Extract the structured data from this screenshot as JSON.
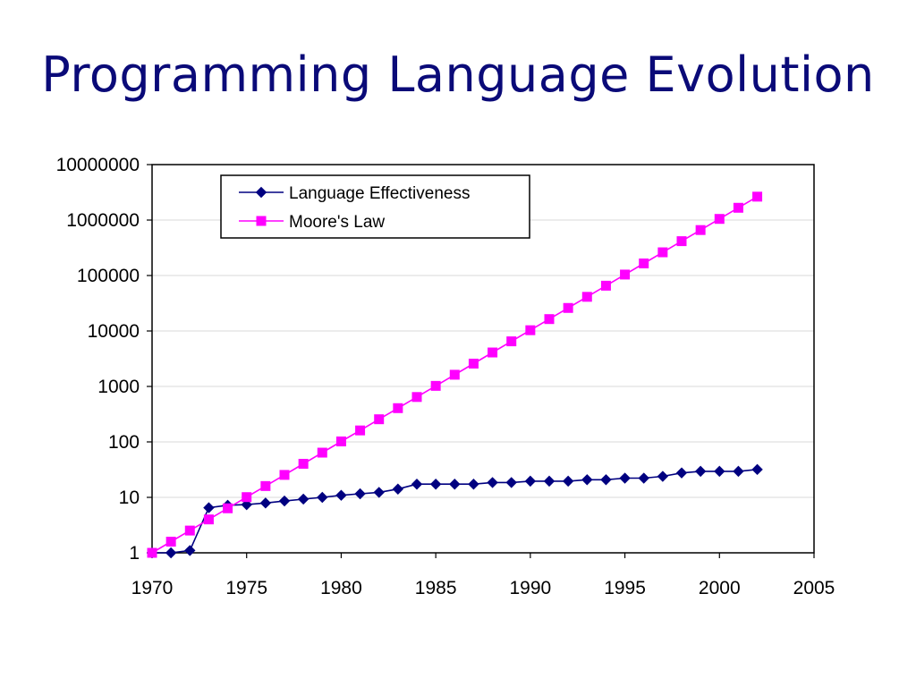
{
  "slide": {
    "title": "Programming Language Evolution"
  },
  "chart_data": {
    "type": "line",
    "title": "",
    "xlabel": "",
    "ylabel": "",
    "x_scale": "linear",
    "y_scale": "log",
    "xlim": [
      1970,
      2005
    ],
    "ylim": [
      1,
      10000000
    ],
    "x_ticks": [
      "1970",
      "1975",
      "1980",
      "1985",
      "1990",
      "1995",
      "2000",
      "2005"
    ],
    "y_ticks": [
      "1",
      "10",
      "100",
      "1000",
      "10000",
      "100000",
      "1000000",
      "10000000"
    ],
    "grid": "horizontal",
    "legend_position": "top-left (inside plot)",
    "x": [
      1970,
      1971,
      1972,
      1973,
      1974,
      1975,
      1976,
      1977,
      1978,
      1979,
      1980,
      1981,
      1982,
      1983,
      1984,
      1985,
      1986,
      1987,
      1988,
      1989,
      1990,
      1991,
      1992,
      1993,
      1994,
      1995,
      1996,
      1997,
      1998,
      1999,
      2000,
      2001,
      2002
    ],
    "series": [
      {
        "name": "Language Effectiveness",
        "color": "#000080",
        "marker": "diamond",
        "values": [
          1,
          1,
          1.1,
          6.5,
          7.2,
          7.4,
          7.9,
          8.6,
          9.3,
          10,
          10.9,
          11.6,
          12.3,
          14.1,
          17.3,
          17.3,
          17.3,
          17.3,
          18.5,
          18.5,
          19.6,
          19.6,
          19.6,
          20.8,
          20.8,
          22.2,
          22.2,
          23.9,
          27.6,
          29.5,
          29.5,
          29.5,
          31.8
        ]
      },
      {
        "name": "Moore's Law",
        "color": "#ff00ff",
        "marker": "square",
        "values": [
          1,
          1.59,
          2.52,
          4,
          6.35,
          10.1,
          16,
          25.4,
          40.3,
          64,
          102,
          161,
          256,
          406,
          645,
          1024,
          1625,
          2580,
          4096,
          6502,
          10321,
          16384,
          26008,
          41285,
          65536,
          104032,
          165140,
          262144,
          416128,
          660561,
          1048576,
          1664510,
          2642245
        ]
      }
    ]
  }
}
